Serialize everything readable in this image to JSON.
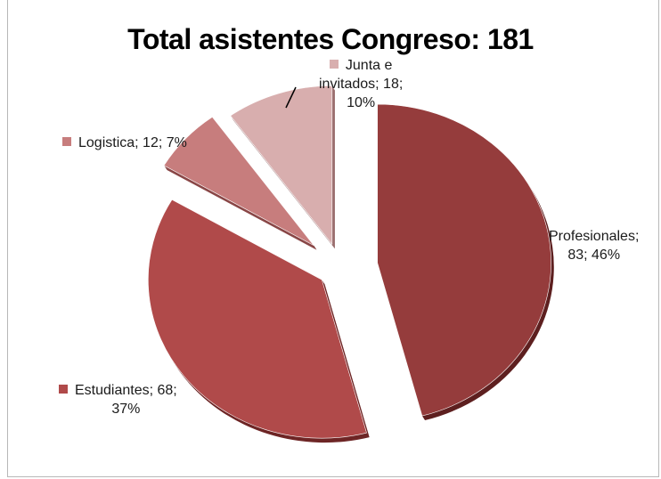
{
  "chart_data": {
    "type": "pie",
    "title": "Total asistentes Congreso:  181",
    "exploded": true,
    "slices": [
      {
        "name": "Profesionales",
        "value": 83,
        "percent": "46%",
        "color": "#953c3c",
        "dark": "#5e2020",
        "label_lines": [
          "Profesionales;",
          "83; 46%"
        ]
      },
      {
        "name": "Estudiantes",
        "value": 68,
        "percent": "37%",
        "color": "#b04a4a",
        "dark": "#6e2626",
        "label_lines": [
          "Estudiantes; 68;",
          "37%"
        ]
      },
      {
        "name": "Logistica",
        "value": 12,
        "percent": "7%",
        "color": "#c77d7d",
        "dark": "#8a4848",
        "label_lines": [
          "Logistica; 12; 7%"
        ]
      },
      {
        "name": "Junta e invitados",
        "value": 18,
        "percent": "10%",
        "color": "#d8aeae",
        "dark": "#9b6f6f",
        "label_lines": [
          "Junta e",
          "invitados; 18;",
          "10%"
        ]
      }
    ]
  }
}
